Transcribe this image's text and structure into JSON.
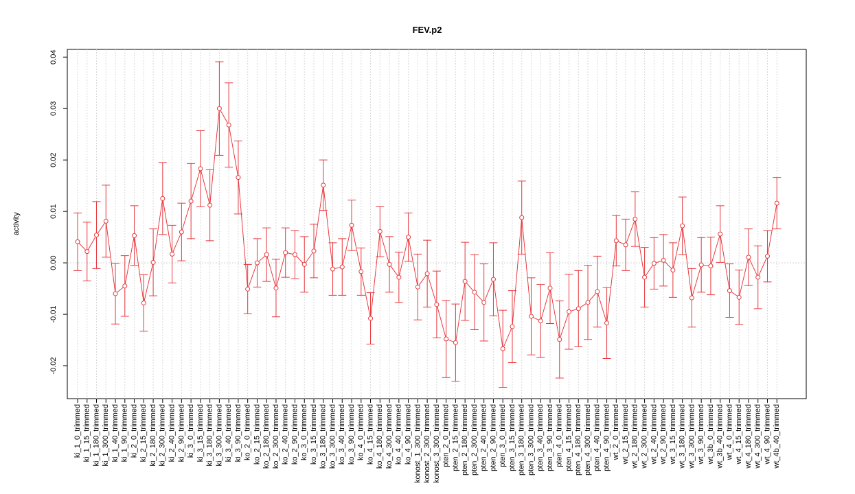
{
  "chart_data": {
    "type": "errorbar-line",
    "title": "FEV.p2",
    "y_label": "activity",
    "categories": [
      "ki_1_0_trimmed",
      "ki_1_15_trimmed",
      "ki_1_180_trimmed",
      "ki_1_300_trimmed",
      "ki_1_40_trimmed",
      "ki_1_90_trimmed",
      "ki_2_0_trimmed",
      "ki_2_15_trimmed",
      "ki_2_180_trimmed",
      "ki_2_300_trimmed",
      "ki_2_40_trimmed",
      "ki_2_90_trimmed",
      "ki_3_0_trimmed",
      "ki_3_15_trimmed",
      "ki_3_180_trimmed",
      "ki_3_300_trimmed",
      "ki_3_40_trimmed",
      "ki_3_90_trimmed",
      "ko_2_0_trimmed",
      "ko_2_15_trimmed",
      "ko_2_180_trimmed",
      "ko_2_300_trimmed",
      "ko_2_40_trimmed",
      "ko_2_90_trimmed",
      "ko_3_0_trimmed",
      "ko_3_15_trimmed",
      "ko_3_180_trimmed",
      "ko_3_300_trimmed",
      "ko_3_40_trimmed",
      "ko_3_90_trimmed",
      "ko_4_0_trimmed",
      "ko_4_15_trimmed",
      "ko_4_180_trimmed",
      "ko_4_300_trimmed",
      "ko_4_40_trimmed",
      "ko_4_90_trimmed",
      "konost_1_300_trimmed",
      "konost_2_300_trimmed",
      "konost_3_300_trimmed",
      "pten_2_0_trimmed",
      "pten_2_15_trimmed",
      "pten_2_180_trimmed",
      "pten_2_300_trimmed",
      "pten_2_40_trimmed",
      "pten_2_90_trimmed",
      "pten_3_0_trimmed",
      "pten_3_15_trimmed",
      "pten_3_180_trimmed",
      "pten_3_300_trimmed",
      "pten_3_40_trimmed",
      "pten_3_90_trimmed",
      "pten_4_0_trimmed",
      "pten_4_15_trimmed",
      "pten_4_180_trimmed",
      "pten_4_300_trimmed",
      "pten_4_40_trimmed",
      "pten_4_90_trimmed",
      "wt_2_0_trimmed",
      "wt_2_15_trimmed",
      "wt_2_180_trimmed",
      "wt_2_300_trimmed",
      "wt_2_40_trimmed",
      "wt_2_90_trimmed",
      "wt_3_15_trimmed",
      "wt_3_180_trimmed",
      "wt_3_300_trimmed",
      "wt_3_90_trimmed",
      "wt_3b_0_trimmed",
      "wt_3b_40_trimmed",
      "wt_4_0_trimmed",
      "wt_4_15_trimmed",
      "wt_4_180_trimmed",
      "wt_4_300_trimmed",
      "wt_4_90_trimmed",
      "wt_4b_40_trimmed"
    ],
    "values": [
      0.0041,
      0.0022,
      0.0054,
      0.0081,
      -0.006,
      -0.0045,
      0.0053,
      -0.0078,
      0.0001,
      0.0125,
      0.0017,
      0.006,
      0.012,
      0.0183,
      0.0112,
      0.03,
      0.0268,
      0.0166,
      -0.0051,
      0.0,
      0.0016,
      -0.0049,
      0.002,
      0.0016,
      -0.0003,
      0.0023,
      0.0151,
      -0.0012,
      -0.0008,
      0.0073,
      -0.0017,
      -0.0108,
      0.0061,
      -0.0003,
      -0.0028,
      0.005,
      -0.0047,
      -0.0021,
      -0.0081,
      -0.0148,
      -0.0155,
      -0.0036,
      -0.0057,
      -0.0077,
      -0.0032,
      -0.0167,
      -0.0124,
      0.0088,
      -0.0104,
      -0.0113,
      -0.0049,
      -0.0149,
      -0.0095,
      -0.0089,
      -0.0077,
      -0.0056,
      -0.0117,
      0.0043,
      0.0035,
      0.0085,
      -0.0028,
      -0.0001,
      0.0005,
      -0.0014,
      0.0072,
      -0.0068,
      -0.0004,
      -0.0006,
      0.0056,
      -0.0054,
      -0.0067,
      0.0011,
      -0.0028,
      0.0013,
      0.0116
    ],
    "errors": [
      0.0056,
      0.0057,
      0.0065,
      0.007,
      0.0059,
      0.0059,
      0.0058,
      0.0055,
      0.0065,
      0.007,
      0.0056,
      0.0056,
      0.0073,
      0.0074,
      0.0069,
      0.0091,
      0.0082,
      0.0071,
      0.0048,
      0.0047,
      0.0052,
      0.0056,
      0.0048,
      0.0047,
      0.0054,
      0.0052,
      0.0049,
      0.0051,
      0.0055,
      0.0049,
      0.0046,
      0.005,
      0.0049,
      0.0054,
      0.0049,
      0.0047,
      0.0064,
      0.0065,
      0.0065,
      0.0075,
      0.0075,
      0.0076,
      0.0073,
      0.0075,
      0.0071,
      0.0075,
      0.007,
      0.0071,
      0.0075,
      0.0071,
      0.0069,
      0.0075,
      0.0073,
      0.0074,
      0.0072,
      0.0069,
      0.0069,
      0.0049,
      0.005,
      0.0053,
      0.0058,
      0.005,
      0.005,
      0.0053,
      0.0056,
      0.0057,
      0.0053,
      0.0056,
      0.0055,
      0.0052,
      0.0053,
      0.0055,
      0.0061,
      0.005,
      0.005
    ],
    "color": "#e8383d",
    "ylim": [
      -0.0264,
      0.0415
    ],
    "yticks": [
      -0.02,
      -0.01,
      {
        "value": 0,
        "label": "0.00"
      },
      0.01,
      0.02,
      0.03,
      0.04
    ],
    "grid": true
  }
}
